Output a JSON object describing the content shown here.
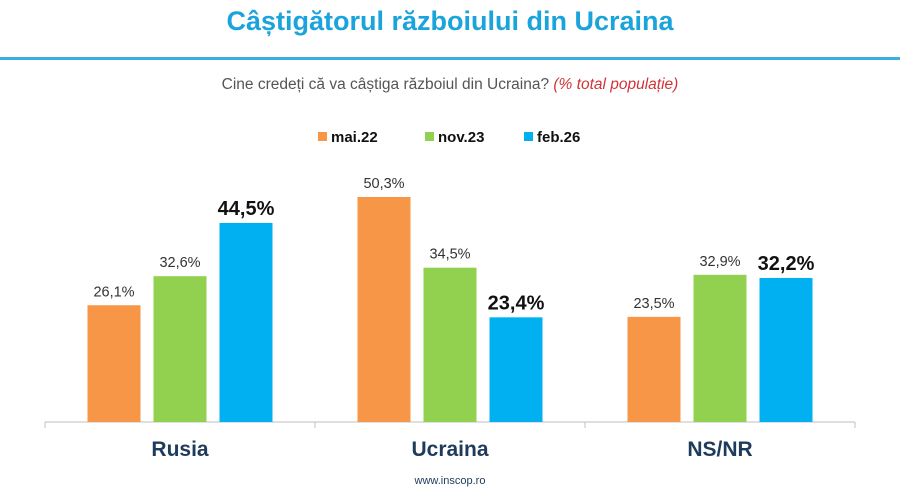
{
  "chart_data": {
    "type": "bar",
    "title": "Câștigătorul războiului din Ucraina",
    "subtitle": "Cine credeți că va câștiga războiul din Ucraina?",
    "subtitle_note": "(% total populație)",
    "categories": [
      "Rusia",
      "Ucraina",
      "NS/NR"
    ],
    "series": [
      {
        "name": "mai.22",
        "color": "#f79646",
        "values": [
          26.1,
          50.3,
          23.5
        ],
        "labels": [
          "26,1%",
          "50,3%",
          "23,5%"
        ]
      },
      {
        "name": "nov.23",
        "color": "#92d050",
        "values": [
          32.6,
          34.5,
          32.9
        ],
        "labels": [
          "32,6%",
          "34,5%",
          "32,9%"
        ]
      },
      {
        "name": "feb.26",
        "color": "#00b0f0",
        "values": [
          44.5,
          23.4,
          32.2
        ],
        "labels": [
          "44,5%",
          "23,4%",
          "32,2%"
        ]
      }
    ],
    "ylim": [
      0,
      55
    ],
    "grid": false,
    "legend": "top-center"
  },
  "footer": "www.inscop.ro"
}
